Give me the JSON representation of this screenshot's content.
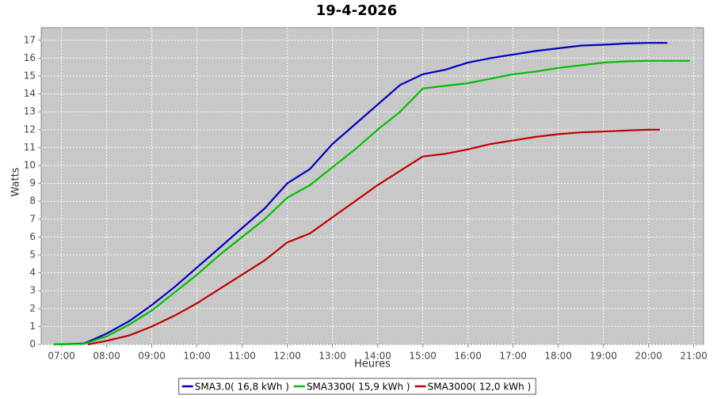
{
  "chart_data": {
    "type": "line",
    "title": "19-4-2026",
    "x_label": "Heures",
    "y_label": "Watts",
    "xlim": [
      "06:33",
      "21:13"
    ],
    "xticks": [
      "07:00",
      "08:00",
      "09:00",
      "10:00",
      "11:00",
      "12:00",
      "13:00",
      "14:00",
      "15:00",
      "16:00",
      "17:00",
      "18:00",
      "19:00",
      "20:00",
      "21:00"
    ],
    "ylim": [
      0,
      17.7
    ],
    "yticks": [
      0,
      1,
      2,
      3,
      4,
      5,
      6,
      7,
      8,
      9,
      10,
      11,
      12,
      13,
      14,
      15,
      16,
      17
    ],
    "grid": true,
    "legend": "bottom",
    "series": [
      {
        "name": "SMA3.0( 16,8 kWh )",
        "color": "#0000c0",
        "x": [
          "06:50",
          "07:30",
          "08:00",
          "08:30",
          "09:00",
          "09:30",
          "10:00",
          "10:30",
          "11:00",
          "11:30",
          "12:00",
          "12:30",
          "13:00",
          "13:30",
          "14:00",
          "14:30",
          "15:00",
          "15:30",
          "16:00",
          "16:30",
          "17:00",
          "17:30",
          "18:00",
          "18:30",
          "19:00",
          "19:30",
          "20:00",
          "20:25"
        ],
        "values": [
          0,
          0.05,
          0.6,
          1.3,
          2.2,
          3.2,
          4.3,
          5.4,
          6.5,
          7.6,
          9.0,
          9.8,
          11.2,
          12.3,
          13.4,
          14.5,
          15.1,
          15.35,
          15.75,
          16.0,
          16.2,
          16.4,
          16.55,
          16.7,
          16.75,
          16.82,
          16.85,
          16.85
        ]
      },
      {
        "name": "SMA3300( 15,9 kWh )",
        "color": "#00c000",
        "x": [
          "06:50",
          "07:30",
          "08:00",
          "08:30",
          "09:00",
          "09:30",
          "10:00",
          "10:30",
          "11:00",
          "11:30",
          "12:00",
          "12:30",
          "13:00",
          "13:30",
          "14:00",
          "14:30",
          "15:00",
          "15:30",
          "16:00",
          "16:30",
          "17:00",
          "17:30",
          "18:00",
          "18:30",
          "19:00",
          "19:30",
          "20:00",
          "20:55"
        ],
        "values": [
          0,
          0.03,
          0.45,
          1.1,
          1.9,
          2.9,
          3.9,
          5.0,
          6.0,
          7.0,
          8.2,
          8.9,
          9.9,
          10.9,
          12.0,
          13.0,
          14.3,
          14.45,
          14.6,
          14.85,
          15.1,
          15.25,
          15.45,
          15.6,
          15.75,
          15.82,
          15.85,
          15.85
        ]
      },
      {
        "name": "SMA3000( 12,0 kWh )",
        "color": "#c00000",
        "x": [
          "07:35",
          "08:00",
          "08:30",
          "09:00",
          "09:30",
          "10:00",
          "10:30",
          "11:00",
          "11:30",
          "12:00",
          "12:30",
          "13:00",
          "13:30",
          "14:00",
          "14:30",
          "15:00",
          "15:30",
          "16:00",
          "16:30",
          "17:00",
          "17:30",
          "18:00",
          "18:30",
          "19:00",
          "19:30",
          "20:00",
          "20:15"
        ],
        "values": [
          0,
          0.2,
          0.5,
          1.0,
          1.6,
          2.3,
          3.1,
          3.9,
          4.7,
          5.7,
          6.2,
          7.1,
          8.0,
          8.9,
          9.7,
          10.5,
          10.65,
          10.9,
          11.2,
          11.4,
          11.6,
          11.75,
          11.85,
          11.9,
          11.95,
          12.0,
          12.0
        ]
      }
    ]
  }
}
